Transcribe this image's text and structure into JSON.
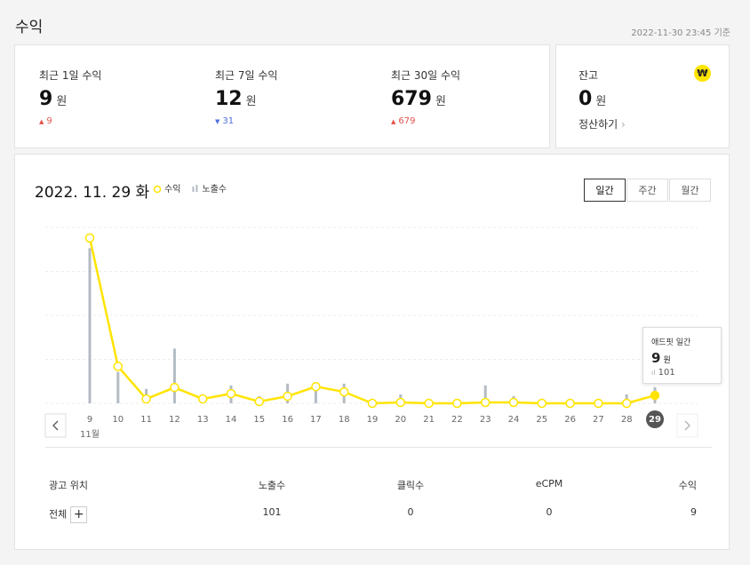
{
  "header": {
    "title": "수익",
    "updated": "2022-11-30 23:45 기준"
  },
  "unit": "원",
  "summary": [
    {
      "label": "최근 1일 수익",
      "value": 9,
      "change": 9,
      "direction": "up"
    },
    {
      "label": "최근 7일 수익",
      "value": 12,
      "change": 31,
      "direction": "down"
    },
    {
      "label": "최근 30일 수익",
      "value": 679,
      "change": 679,
      "direction": "up"
    }
  ],
  "balance": {
    "label": "잔고",
    "value": 0,
    "action": "정산하기"
  },
  "tabs": {
    "items": [
      "일간",
      "주간",
      "월간"
    ],
    "active": 0
  },
  "chart_data": {
    "type": "line",
    "title": "2022. 11. 29 화",
    "categories": [
      "9",
      "10",
      "11",
      "12",
      "13",
      "14",
      "15",
      "16",
      "17",
      "18",
      "19",
      "20",
      "21",
      "22",
      "23",
      "24",
      "25",
      "26",
      "27",
      "28",
      "29"
    ],
    "month_label": "11월",
    "series": [
      {
        "name": "수익",
        "type": "line",
        "color": "#ffe400",
        "values": [
          188,
          42,
          5,
          18,
          5,
          11,
          2,
          8,
          19,
          13,
          0,
          1,
          0,
          0,
          1,
          1,
          0,
          0,
          0,
          0,
          9
        ]
      },
      {
        "name": "노출수",
        "type": "bar",
        "color": "#b4bbc3",
        "axis": "y2",
        "values": [
          970,
          196,
          90,
          342,
          56,
          112,
          45,
          123,
          118,
          123,
          17,
          56,
          11,
          11,
          112,
          45,
          11,
          11,
          11,
          56,
          101
        ]
      }
    ],
    "ylim": [
      0,
      200
    ],
    "yticks": [
      0,
      50,
      100,
      150,
      200
    ],
    "y2lim": [
      0,
      1100
    ],
    "grid": true,
    "selected": 20,
    "tooltip": {
      "title": "애드핏 일간"
    }
  },
  "table": {
    "columns": [
      "광고 위치",
      "노출수",
      "클릭수",
      "eCPM",
      "수익"
    ],
    "rows": [
      [
        "전체",
        "101",
        "0",
        "0",
        "9"
      ]
    ]
  }
}
